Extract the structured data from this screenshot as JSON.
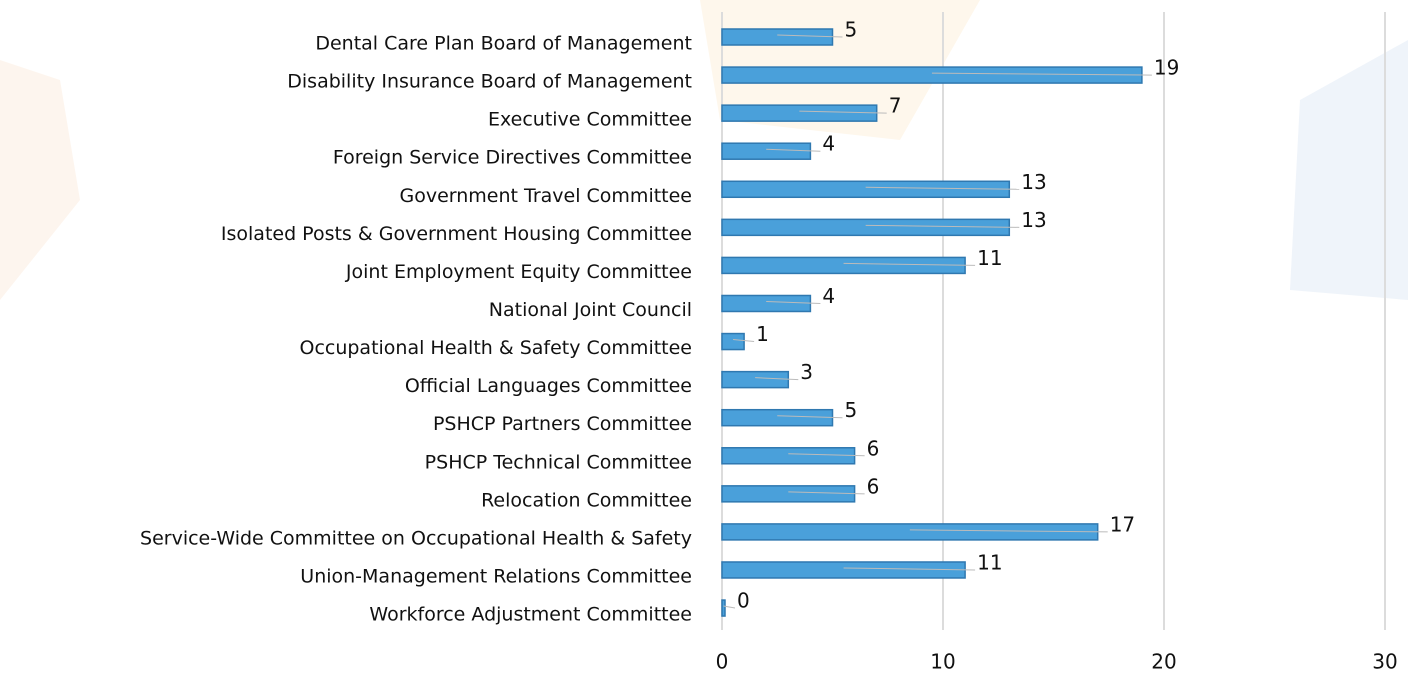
{
  "chart_data": {
    "type": "bar",
    "orientation": "horizontal",
    "categories": [
      "Dental Care Plan Board of Management",
      "Disability Insurance Board of Management",
      "Executive Committee",
      "Foreign Service Directives Committee",
      "Government Travel Committee",
      "Isolated Posts & Government Housing Committee",
      "Joint Employment Equity Committee",
      "National Joint Council",
      "Occupational Health & Safety Committee",
      "Official Languages Committee",
      "PSHCP Partners Committee",
      "PSHCP Technical Committee",
      "Relocation Committee",
      "Service-Wide Committee on Occupational Health & Safety",
      "Union-Management Relations Committee",
      "Workforce Adjustment Committee"
    ],
    "values": [
      5,
      19,
      7,
      4,
      13,
      13,
      11,
      4,
      1,
      3,
      5,
      6,
      6,
      17,
      11,
      0
    ],
    "color": "#4aa0da",
    "xlim": [
      0,
      30
    ],
    "xticks": [
      0,
      10,
      20,
      30
    ],
    "grid": true
  }
}
